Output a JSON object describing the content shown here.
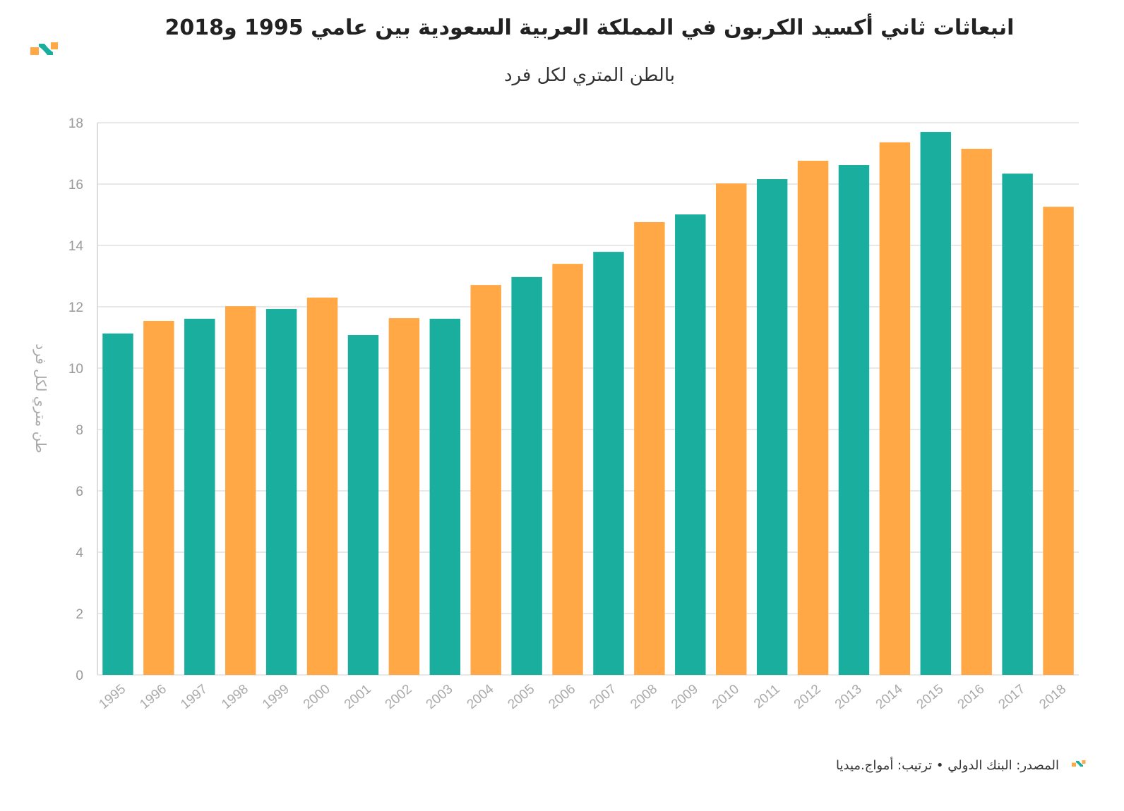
{
  "title": "انبعاثات ثاني أكسيد الكربون في المملكة العربية السعودية بين عامي 1995 و2018",
  "subtitle": "بالطن المتري لكل فرد",
  "source": "المصدر: البنك الدولي • ترتيب: أمواج.ميديا",
  "logo": "Amwaj.media logo",
  "colors": {
    "teal": "#1aae9f",
    "orange": "#ffa845",
    "grid": "#e8e8e8"
  },
  "chart_data": {
    "type": "bar",
    "ylabel": "طن متري لكل فرد",
    "ylim": [
      0,
      18
    ],
    "yticks": [
      0,
      2,
      4,
      6,
      8,
      10,
      12,
      14,
      16,
      18
    ],
    "grid": true,
    "categories": [
      "1995",
      "1996",
      "1997",
      "1998",
      "1999",
      "2000",
      "2001",
      "2002",
      "2003",
      "2004",
      "2005",
      "2006",
      "2007",
      "2008",
      "2009",
      "2010",
      "2011",
      "2012",
      "2013",
      "2014",
      "2015",
      "2016",
      "2017",
      "2018"
    ],
    "values": [
      11.13,
      11.54,
      11.61,
      12.02,
      11.93,
      12.3,
      11.08,
      11.63,
      11.61,
      12.71,
      12.97,
      13.4,
      13.79,
      14.76,
      15.01,
      16.02,
      16.16,
      16.76,
      16.62,
      17.36,
      17.7,
      17.15,
      16.34,
      15.26
    ],
    "bar_colors": [
      "teal",
      "orange",
      "teal",
      "orange",
      "teal",
      "orange",
      "teal",
      "orange",
      "teal",
      "orange",
      "teal",
      "orange",
      "teal",
      "orange",
      "teal",
      "orange",
      "teal",
      "orange",
      "teal",
      "orange",
      "teal",
      "orange",
      "teal",
      "orange"
    ]
  }
}
